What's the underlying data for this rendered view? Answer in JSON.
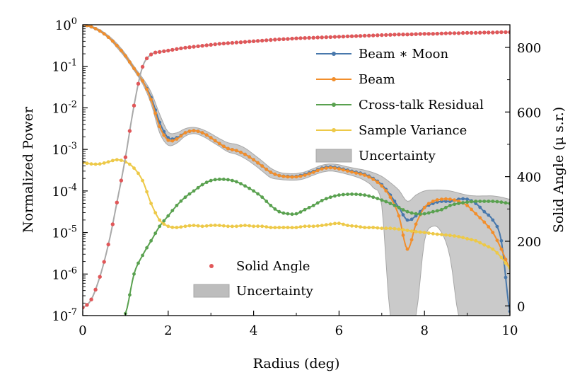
{
  "chart_data": {
    "type": "line",
    "xlabel": "Radius (deg)",
    "ylabel": "Normalized Power",
    "y2label": "Solid Angle (μ s.r.)",
    "xlim": [
      0,
      10
    ],
    "ylim_log10": [
      -7,
      0
    ],
    "y2lim": [
      -30,
      870
    ],
    "x_ticks": [
      0,
      2,
      4,
      6,
      8,
      10
    ],
    "y_tick_exponents": [
      0,
      -1,
      -2,
      -3,
      -4,
      -5,
      -6,
      -7
    ],
    "y_tick_labels": [
      "10^0",
      "10^-1",
      "10^-2",
      "10^-3",
      "10^-4",
      "10^-5",
      "10^-6",
      "10^-7"
    ],
    "y2_ticks": [
      0,
      200,
      400,
      600,
      800
    ],
    "x_knots": [
      0,
      0.2,
      0.4,
      0.6,
      0.8,
      1.0,
      1.2,
      1.4,
      1.6,
      1.8,
      2.0,
      2.2,
      2.4,
      2.6,
      2.8,
      3.0,
      3.2,
      3.4,
      3.6,
      3.8,
      4.0,
      4.2,
      4.4,
      4.6,
      4.8,
      5.0,
      5.2,
      5.4,
      5.6,
      5.8,
      6.0,
      6.2,
      6.4,
      6.6,
      6.8,
      7.0,
      7.2,
      7.4,
      7.6,
      7.8,
      8.0,
      8.2,
      8.4,
      8.6,
      8.8,
      9.0,
      9.2,
      9.4,
      9.6,
      9.8,
      10.0
    ],
    "series": [
      {
        "name": "Beam ∗ Moon",
        "color": "#4878ac",
        "axis": "left",
        "log10_values": [
          0,
          -0.05,
          -0.15,
          -0.3,
          -0.5,
          -0.75,
          -1.05,
          -1.35,
          -1.75,
          -2.35,
          -2.72,
          -2.72,
          -2.6,
          -2.55,
          -2.6,
          -2.72,
          -2.86,
          -2.98,
          -3.03,
          -3.12,
          -3.25,
          -3.4,
          -3.55,
          -3.63,
          -3.65,
          -3.65,
          -3.6,
          -3.53,
          -3.45,
          -3.42,
          -3.45,
          -3.5,
          -3.55,
          -3.6,
          -3.7,
          -3.85,
          -4.1,
          -4.4,
          -4.7,
          -4.6,
          -4.4,
          -4.3,
          -4.25,
          -4.25,
          -4.2,
          -4.2,
          -4.3,
          -4.5,
          -4.7,
          -5.2,
          -6.9
        ]
      },
      {
        "name": "Beam",
        "color": "#f28e2b",
        "axis": "left",
        "log10_values": [
          0,
          -0.05,
          -0.15,
          -0.3,
          -0.5,
          -0.75,
          -1.05,
          -1.35,
          -1.8,
          -2.45,
          -2.78,
          -2.75,
          -2.6,
          -2.55,
          -2.6,
          -2.72,
          -2.86,
          -2.98,
          -3.03,
          -3.12,
          -3.25,
          -3.4,
          -3.55,
          -3.63,
          -3.66,
          -3.66,
          -3.62,
          -3.55,
          -3.47,
          -3.44,
          -3.47,
          -3.52,
          -3.57,
          -3.62,
          -3.72,
          -3.88,
          -4.15,
          -4.6,
          -5.4,
          -4.8,
          -4.4,
          -4.25,
          -4.2,
          -4.2,
          -4.25,
          -4.35,
          -4.55,
          -4.75,
          -5.0,
          -5.4,
          -5.85
        ]
      },
      {
        "name": "Cross-talk Residual",
        "color": "#59a14f",
        "axis": "left",
        "log10_values": [
          null,
          null,
          null,
          null,
          null,
          -6.95,
          -6.0,
          -5.55,
          -5.2,
          -4.85,
          -4.6,
          -4.35,
          -4.15,
          -4.0,
          -3.85,
          -3.75,
          -3.72,
          -3.73,
          -3.78,
          -3.88,
          -4.0,
          -4.15,
          -4.35,
          -4.5,
          -4.55,
          -4.55,
          -4.45,
          -4.35,
          -4.23,
          -4.15,
          -4.1,
          -4.08,
          -4.08,
          -4.1,
          -4.15,
          -4.22,
          -4.3,
          -4.4,
          -4.5,
          -4.55,
          -4.55,
          -4.5,
          -4.45,
          -4.35,
          -4.3,
          -4.27,
          -4.25,
          -4.25,
          -4.25,
          -4.27,
          -4.3
        ]
      },
      {
        "name": "Sample Variance",
        "color": "#edc948",
        "axis": "left",
        "log10_values": [
          -3.32,
          -3.35,
          -3.35,
          -3.3,
          -3.25,
          -3.3,
          -3.45,
          -3.75,
          -4.3,
          -4.7,
          -4.85,
          -4.88,
          -4.85,
          -4.83,
          -4.85,
          -4.83,
          -4.83,
          -4.85,
          -4.85,
          -4.83,
          -4.85,
          -4.85,
          -4.88,
          -4.88,
          -4.88,
          -4.88,
          -4.85,
          -4.85,
          -4.83,
          -4.8,
          -4.78,
          -4.83,
          -4.85,
          -4.88,
          -4.88,
          -4.9,
          -4.9,
          -4.92,
          -4.95,
          -4.98,
          -5.0,
          -5.03,
          -5.05,
          -5.07,
          -5.1,
          -5.15,
          -5.2,
          -5.3,
          -5.4,
          -5.6,
          -5.85
        ]
      },
      {
        "name": "Solid Angle",
        "color": "#e15759",
        "axis": "right",
        "values": [
          -5,
          20,
          90,
          190,
          320,
          460,
          620,
          740,
          778,
          786,
          790,
          795,
          799,
          802,
          805,
          808,
          811,
          813,
          815,
          817,
          819,
          821,
          823,
          825,
          826,
          828,
          829,
          830,
          831,
          832,
          833,
          834,
          835,
          836,
          837,
          838,
          839,
          840,
          840,
          841,
          842,
          842,
          843,
          844,
          844,
          845,
          845,
          846,
          846,
          847,
          847
        ]
      }
    ],
    "uncertainty_band": {
      "name": "Uncertainty",
      "color": "#bdbdbd",
      "lower_log10": [
        0,
        -0.07,
        -0.17,
        -0.32,
        -0.55,
        -0.8,
        -1.1,
        -1.42,
        -1.9,
        -2.6,
        -2.9,
        -2.85,
        -2.68,
        -2.62,
        -2.68,
        -2.8,
        -2.93,
        -3.06,
        -3.12,
        -3.22,
        -3.36,
        -3.52,
        -3.68,
        -3.72,
        -3.74,
        -3.74,
        -3.7,
        -3.62,
        -3.55,
        -3.52,
        -3.55,
        -3.6,
        -3.66,
        -3.75,
        -3.92,
        -4.35,
        -7.0,
        -7.0,
        -7.0,
        -7.0,
        -5.2,
        -4.85,
        -5.0,
        -5.6,
        -7.0,
        -7.0,
        -7.0,
        -7.0,
        -7.0,
        -7.0,
        -7.0
      ],
      "upper_log10": [
        0,
        -0.03,
        -0.12,
        -0.26,
        -0.45,
        -0.7,
        -1.0,
        -1.28,
        -1.62,
        -2.15,
        -2.58,
        -2.6,
        -2.5,
        -2.47,
        -2.52,
        -2.62,
        -2.74,
        -2.84,
        -2.88,
        -2.97,
        -3.12,
        -3.28,
        -3.45,
        -3.55,
        -3.58,
        -3.58,
        -3.54,
        -3.46,
        -3.38,
        -3.35,
        -3.37,
        -3.42,
        -3.46,
        -3.5,
        -3.56,
        -3.65,
        -3.8,
        -3.98,
        -4.25,
        -4.1,
        -4.0,
        -3.98,
        -3.98,
        -4.0,
        -4.05,
        -4.1,
        -4.12,
        -4.12,
        -4.12,
        -4.15,
        -4.2
      ]
    },
    "legends": [
      {
        "placement": "upper-right",
        "entries": [
          {
            "label": "Beam ∗ Moon",
            "kind": "line-marker",
            "color": "#4878ac"
          },
          {
            "label": "Beam",
            "kind": "line-marker",
            "color": "#f28e2b"
          },
          {
            "label": "Cross-talk Residual",
            "kind": "line-marker",
            "color": "#59a14f"
          },
          {
            "label": "Sample Variance",
            "kind": "line-marker",
            "color": "#edc948"
          },
          {
            "label": "Uncertainty",
            "kind": "patch",
            "color": "#bdbdbd"
          }
        ]
      },
      {
        "placement": "lower-left",
        "entries": [
          {
            "label": "Solid Angle",
            "kind": "marker",
            "color": "#e15759"
          },
          {
            "label": "Uncertainty",
            "kind": "patch",
            "color": "#bdbdbd"
          }
        ]
      }
    ]
  }
}
